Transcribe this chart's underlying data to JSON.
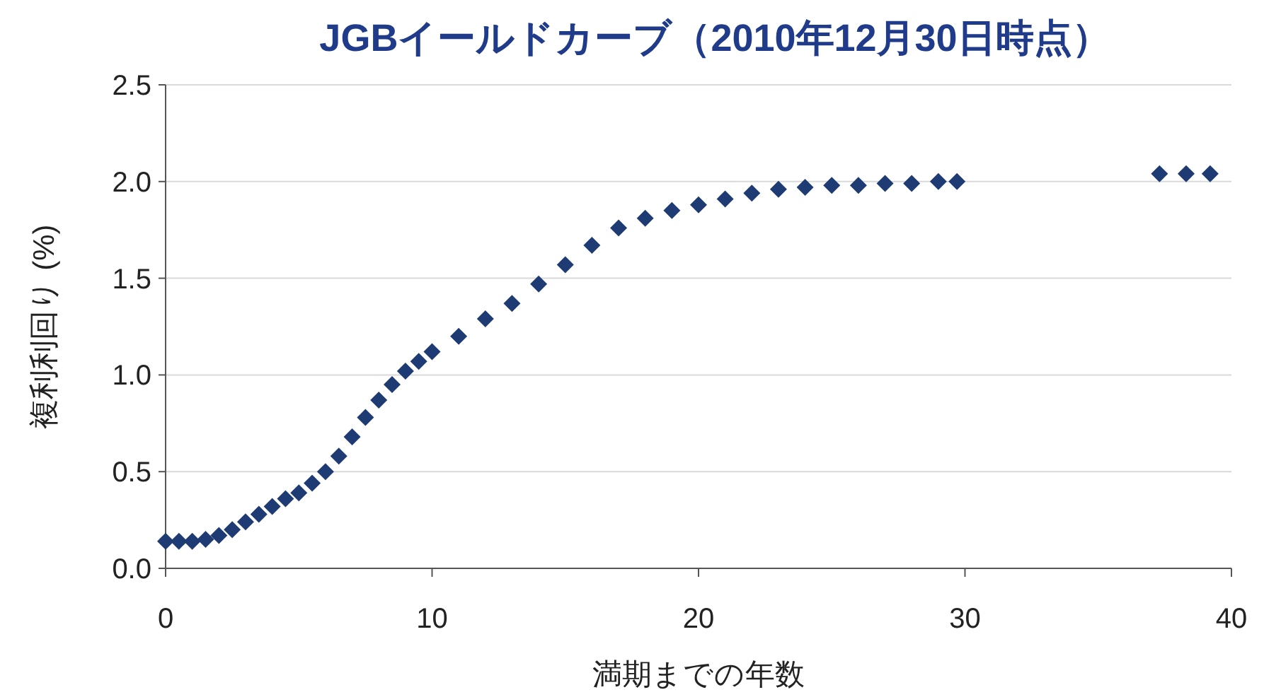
{
  "chart_data": {
    "type": "scatter",
    "title": "JGBイールドカーブ（2010年12月30日時点）",
    "xlabel": "満期までの年数",
    "ylabel": "複利利回り (%)",
    "x": [
      0,
      0.5,
      1,
      1.5,
      2,
      2.5,
      3,
      3.5,
      4,
      4.5,
      5,
      5.5,
      6,
      6.5,
      7,
      7.5,
      8,
      8.5,
      9,
      9.5,
      10,
      11,
      12,
      13,
      14,
      15,
      16,
      17,
      18,
      19,
      20,
      21,
      22,
      23,
      24,
      25,
      26,
      27,
      28,
      29,
      29.7,
      37.3,
      38.3,
      39.2
    ],
    "series": [
      {
        "color": "#1f3b73",
        "values": [
          0.14,
          0.14,
          0.14,
          0.15,
          0.17,
          0.2,
          0.24,
          0.28,
          0.32,
          0.36,
          0.39,
          0.44,
          0.5,
          0.58,
          0.68,
          0.78,
          0.87,
          0.95,
          1.02,
          1.07,
          1.12,
          1.2,
          1.29,
          1.37,
          1.47,
          1.57,
          1.67,
          1.76,
          1.81,
          1.85,
          1.88,
          1.91,
          1.94,
          1.96,
          1.97,
          1.98,
          1.98,
          1.99,
          1.99,
          2.0,
          2.0,
          2.04,
          2.04,
          2.04
        ]
      }
    ],
    "xlim": [
      0,
      40
    ],
    "xticks": [
      0,
      10,
      20,
      30,
      40
    ],
    "ylim": [
      0,
      2.5
    ],
    "yticks": [
      {
        "value": 0,
        "label": "0.0"
      },
      {
        "value": 0.5,
        "label": "0.5"
      },
      {
        "value": 1,
        "label": "1.0"
      },
      {
        "value": 1.5,
        "label": "1.5"
      },
      {
        "value": 2,
        "label": "2.0"
      },
      {
        "value": 2.5,
        "label": "2.5"
      }
    ],
    "grid": "y",
    "marker": "diamond"
  }
}
